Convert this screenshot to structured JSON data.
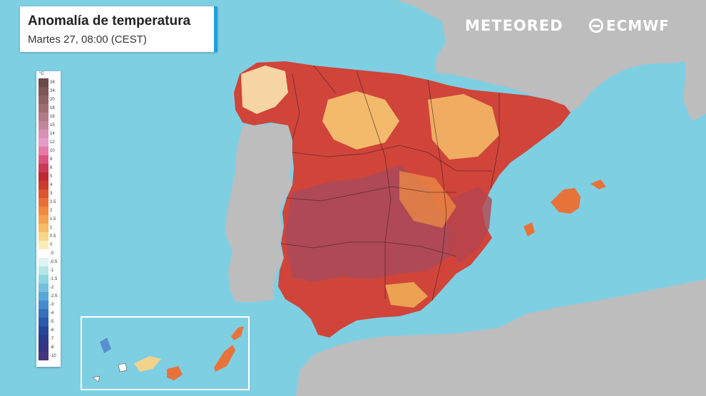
{
  "header": {
    "title": "Anomalía de temperatura",
    "subtitle": "Martes 27, 08:00 (CEST)"
  },
  "brands": {
    "meteored": "METEORED",
    "ecmwf": "ECMWF"
  },
  "legend": {
    "unit": "°C",
    "steps": [
      {
        "label": "28",
        "color": "#6b4a4a"
      },
      {
        "label": "24",
        "color": "#7d5656"
      },
      {
        "label": "20",
        "color": "#8e6262"
      },
      {
        "label": "18",
        "color": "#a06e72"
      },
      {
        "label": "16",
        "color": "#b07a86"
      },
      {
        "label": "15",
        "color": "#c4869c"
      },
      {
        "label": "14",
        "color": "#d691b4"
      },
      {
        "label": "12",
        "color": "#e49cc8"
      },
      {
        "label": "10",
        "color": "#e57aa8"
      },
      {
        "label": "8",
        "color": "#d9547f"
      },
      {
        "label": "6",
        "color": "#c93a55"
      },
      {
        "label": "5",
        "color": "#bd2833"
      },
      {
        "label": "4",
        "color": "#cc3a2c"
      },
      {
        "label": "3",
        "color": "#dc5530"
      },
      {
        "label": "2.5",
        "color": "#e87036"
      },
      {
        "label": "2",
        "color": "#ef8a40"
      },
      {
        "label": "1.5",
        "color": "#f3a350"
      },
      {
        "label": "1",
        "color": "#f6bd63"
      },
      {
        "label": "0.5",
        "color": "#f8d787"
      },
      {
        "label": "0",
        "color": "#fbecb9"
      },
      {
        "label": "-0",
        "color": "#ffffff"
      },
      {
        "label": "-0.5",
        "color": "#dff3f0"
      },
      {
        "label": "-1",
        "color": "#b4e6e6"
      },
      {
        "label": "-1.5",
        "color": "#8fd4df"
      },
      {
        "label": "-2",
        "color": "#74c0dc"
      },
      {
        "label": "-2.5",
        "color": "#5aa6d6"
      },
      {
        "label": "-3",
        "color": "#468ccc"
      },
      {
        "label": "-4",
        "color": "#3672be"
      },
      {
        "label": "-5",
        "color": "#2a5aad"
      },
      {
        "label": "-6",
        "color": "#25479b"
      },
      {
        "label": "-7",
        "color": "#2b3b8b"
      },
      {
        "label": "-8",
        "color": "#373583"
      },
      {
        "label": "-10",
        "color": "#45357c"
      }
    ]
  },
  "colors": {
    "sea": "#7fcfe3",
    "land": "#bdbdbd",
    "inset_border": "#ffffff",
    "accent": "#1f9fe0"
  }
}
